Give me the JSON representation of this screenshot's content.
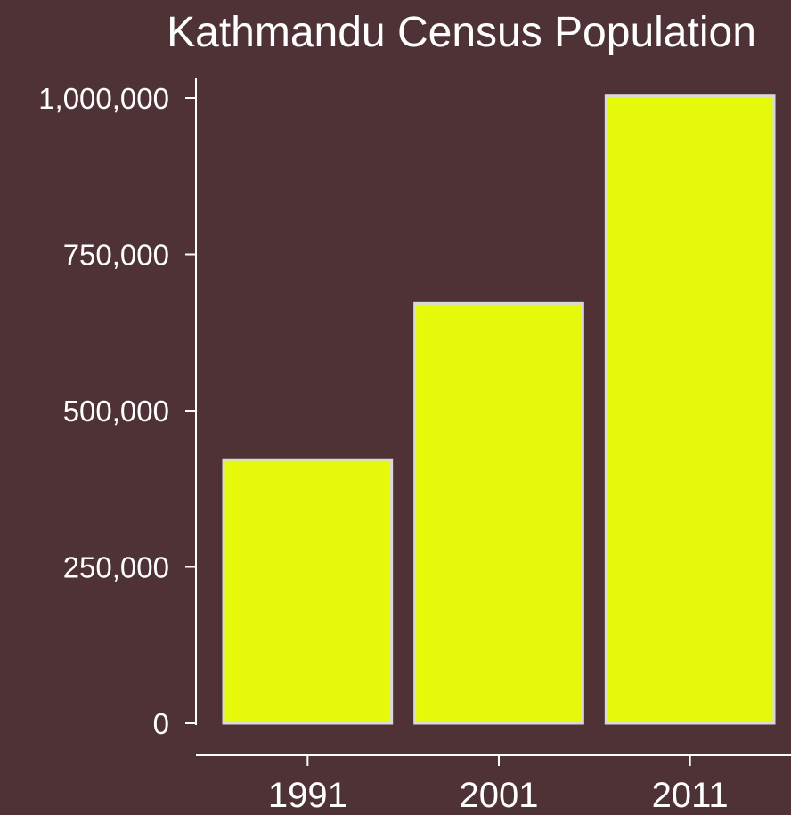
{
  "chart_data": {
    "type": "bar",
    "title": "Kathmandu Census Population",
    "xlabel": "",
    "ylabel": "",
    "categories": [
      "1991",
      "2001",
      "2011"
    ],
    "values": [
      421258,
      671846,
      1003285
    ],
    "ylim": [
      0,
      1000000
    ],
    "yticks": [
      0,
      250000,
      500000,
      750000,
      1000000
    ],
    "ytick_labels": [
      "0",
      "250,000",
      "500,000",
      "750,000",
      "1,000,000"
    ],
    "grid": false,
    "legend": "none",
    "colors": {
      "background": "#4e3236",
      "bar_fill": "#e6f90b",
      "bar_stroke": "#d9d9d9",
      "axis": "#ffffff",
      "text": "#ffffff"
    }
  }
}
